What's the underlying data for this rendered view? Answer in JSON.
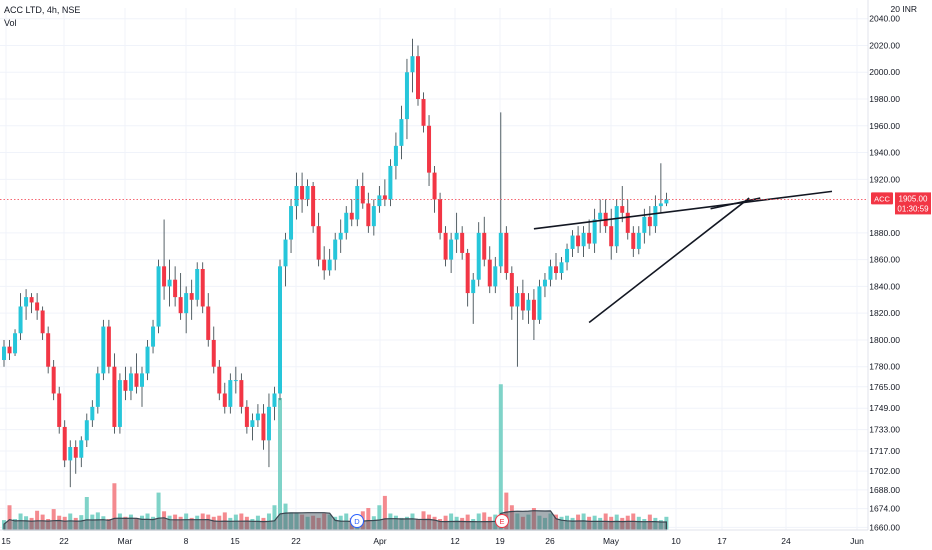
{
  "header": {
    "symbol_line": "ACC LTD, 4h, NSE",
    "volume_label": "Vol"
  },
  "price_scale": {
    "top_label": "20 INR",
    "ticks": [
      2040,
      2020,
      2000,
      1980,
      1960,
      1940,
      1920,
      1880,
      1860,
      1840,
      1820,
      1800,
      1780,
      1765,
      1749,
      1733,
      1717,
      1702,
      1688,
      1674,
      1660
    ],
    "tick_labels": [
      "2040.00",
      "2020.00",
      "2000.00",
      "1980.00",
      "1960.00",
      "1940.00",
      "1920.00",
      "1880.00",
      "1860.00",
      "1840.00",
      "1820.00",
      "1800.00",
      "1780.00",
      "1765.00",
      "1749.00",
      "1733.00",
      "1717.00",
      "1702.00",
      "1688.00",
      "1674.00",
      "1660.00"
    ]
  },
  "last_price": {
    "symbol": "ACC",
    "value": "1905.00",
    "countdown": "01:30:59",
    "price": 1905,
    "color": "#f23645"
  },
  "time_axis": {
    "labels": [
      "15",
      "22",
      "Mar",
      "8",
      "15",
      "22",
      "Apr",
      "12",
      "19",
      "26",
      "May",
      "10",
      "17",
      "24",
      "Jun"
    ]
  },
  "markers": {
    "dividend": "D",
    "earnings": "E"
  },
  "colors": {
    "up": "#26c6da",
    "down": "#f23645",
    "volume_up": "#7fd3c8",
    "volume_down": "#f48a8f",
    "volume_ma_fill": "#5d6b74",
    "grid": "#f0f3fa"
  },
  "chart_data": {
    "type": "candlestick",
    "title": "ACC LTD, 4h, NSE",
    "ylim": [
      1658,
      2048
    ],
    "candles": [
      [
        1785,
        1800,
        1780,
        1795
      ],
      [
        1795,
        1800,
        1785,
        1790
      ],
      [
        1790,
        1808,
        1788,
        1805
      ],
      [
        1805,
        1835,
        1800,
        1825
      ],
      [
        1825,
        1838,
        1815,
        1832
      ],
      [
        1832,
        1835,
        1820,
        1828
      ],
      [
        1828,
        1835,
        1815,
        1822
      ],
      [
        1822,
        1825,
        1800,
        1805
      ],
      [
        1805,
        1810,
        1775,
        1780
      ],
      [
        1780,
        1785,
        1755,
        1760
      ],
      [
        1760,
        1765,
        1730,
        1735
      ],
      [
        1735,
        1740,
        1705,
        1710
      ],
      [
        1710,
        1725,
        1690,
        1720
      ],
      [
        1720,
        1725,
        1700,
        1712
      ],
      [
        1712,
        1728,
        1705,
        1725
      ],
      [
        1725,
        1745,
        1720,
        1740
      ],
      [
        1740,
        1755,
        1735,
        1750
      ],
      [
        1750,
        1780,
        1745,
        1775
      ],
      [
        1775,
        1815,
        1770,
        1810
      ],
      [
        1810,
        1815,
        1775,
        1780
      ],
      [
        1780,
        1790,
        1730,
        1735
      ],
      [
        1735,
        1775,
        1730,
        1770
      ],
      [
        1770,
        1780,
        1755,
        1762
      ],
      [
        1762,
        1780,
        1755,
        1775
      ],
      [
        1775,
        1790,
        1760,
        1765
      ],
      [
        1765,
        1780,
        1750,
        1775
      ],
      [
        1775,
        1800,
        1770,
        1795
      ],
      [
        1795,
        1815,
        1790,
        1810
      ],
      [
        1810,
        1860,
        1805,
        1855
      ],
      [
        1855,
        1890,
        1830,
        1840
      ],
      [
        1840,
        1860,
        1825,
        1845
      ],
      [
        1845,
        1855,
        1825,
        1832
      ],
      [
        1832,
        1850,
        1815,
        1820
      ],
      [
        1820,
        1840,
        1805,
        1835
      ],
      [
        1835,
        1845,
        1815,
        1830
      ],
      [
        1830,
        1858,
        1825,
        1853
      ],
      [
        1853,
        1858,
        1820,
        1825
      ],
      [
        1825,
        1835,
        1795,
        1800
      ],
      [
        1800,
        1810,
        1775,
        1780
      ],
      [
        1780,
        1785,
        1755,
        1760
      ],
      [
        1760,
        1768,
        1745,
        1750
      ],
      [
        1750,
        1775,
        1745,
        1770
      ],
      [
        1770,
        1780,
        1760,
        1770
      ],
      [
        1770,
        1775,
        1745,
        1750
      ],
      [
        1750,
        1755,
        1730,
        1735
      ],
      [
        1735,
        1745,
        1725,
        1740
      ],
      [
        1740,
        1752,
        1735,
        1745
      ],
      [
        1745,
        1752,
        1718,
        1725
      ],
      [
        1725,
        1760,
        1705,
        1750
      ],
      [
        1750,
        1765,
        1740,
        1760
      ],
      [
        1760,
        1860,
        1755,
        1855
      ],
      [
        1855,
        1880,
        1840,
        1875
      ],
      [
        1875,
        1905,
        1865,
        1900
      ],
      [
        1900,
        1925,
        1890,
        1915
      ],
      [
        1915,
        1925,
        1895,
        1905
      ],
      [
        1905,
        1920,
        1900,
        1915
      ],
      [
        1915,
        1918,
        1880,
        1885
      ],
      [
        1885,
        1895,
        1855,
        1860
      ],
      [
        1860,
        1870,
        1845,
        1852
      ],
      [
        1852,
        1868,
        1848,
        1860
      ],
      [
        1860,
        1880,
        1852,
        1875
      ],
      [
        1875,
        1890,
        1865,
        1880
      ],
      [
        1880,
        1900,
        1875,
        1895
      ],
      [
        1895,
        1905,
        1885,
        1890
      ],
      [
        1890,
        1920,
        1885,
        1915
      ],
      [
        1915,
        1925,
        1898,
        1902
      ],
      [
        1902,
        1910,
        1880,
        1885
      ],
      [
        1885,
        1905,
        1878,
        1900
      ],
      [
        1900,
        1915,
        1895,
        1908
      ],
      [
        1908,
        1920,
        1900,
        1905
      ],
      [
        1905,
        1935,
        1900,
        1930
      ],
      [
        1930,
        1955,
        1920,
        1945
      ],
      [
        1945,
        1975,
        1935,
        1965
      ],
      [
        1965,
        2010,
        1950,
        2000
      ],
      [
        2000,
        2025,
        1985,
        2012
      ],
      [
        2012,
        2020,
        1975,
        1980
      ],
      [
        1980,
        1985,
        1955,
        1960
      ],
      [
        1960,
        1968,
        1915,
        1925
      ],
      [
        1925,
        1930,
        1895,
        1905
      ],
      [
        1905,
        1910,
        1875,
        1880
      ],
      [
        1880,
        1885,
        1855,
        1860
      ],
      [
        1860,
        1880,
        1850,
        1875
      ],
      [
        1875,
        1895,
        1865,
        1880
      ],
      [
        1880,
        1885,
        1860,
        1865
      ],
      [
        1865,
        1868,
        1825,
        1835
      ],
      [
        1835,
        1850,
        1812,
        1845
      ],
      [
        1845,
        1888,
        1840,
        1880
      ],
      [
        1880,
        1892,
        1855,
        1860
      ],
      [
        1860,
        1870,
        1835,
        1840
      ],
      [
        1840,
        1862,
        1835,
        1855
      ],
      [
        1855,
        1970,
        1850,
        1880
      ],
      [
        1880,
        1885,
        1845,
        1850
      ],
      [
        1850,
        1855,
        1815,
        1825
      ],
      [
        1825,
        1840,
        1780,
        1835
      ],
      [
        1835,
        1845,
        1815,
        1822
      ],
      [
        1822,
        1835,
        1812,
        1830
      ],
      [
        1830,
        1838,
        1800,
        1815
      ],
      [
        1815,
        1845,
        1812,
        1840
      ],
      [
        1840,
        1850,
        1832,
        1845
      ],
      [
        1845,
        1860,
        1840,
        1855
      ],
      [
        1855,
        1865,
        1845,
        1850
      ],
      [
        1850,
        1862,
        1845,
        1858
      ],
      [
        1858,
        1872,
        1852,
        1868
      ],
      [
        1868,
        1882,
        1862,
        1878
      ],
      [
        1878,
        1885,
        1865,
        1870
      ],
      [
        1870,
        1885,
        1862,
        1880
      ],
      [
        1880,
        1890,
        1868,
        1872
      ],
      [
        1872,
        1898,
        1865,
        1890
      ],
      [
        1890,
        1905,
        1880,
        1895
      ],
      [
        1895,
        1905,
        1880,
        1885
      ],
      [
        1885,
        1898,
        1860,
        1870
      ],
      [
        1870,
        1905,
        1865,
        1900
      ],
      [
        1900,
        1915,
        1888,
        1895
      ],
      [
        1895,
        1905,
        1875,
        1880
      ],
      [
        1880,
        1885,
        1862,
        1868
      ],
      [
        1868,
        1885,
        1864,
        1880
      ],
      [
        1880,
        1898,
        1872,
        1892
      ],
      [
        1892,
        1900,
        1878,
        1885
      ],
      [
        1885,
        1908,
        1880,
        1900
      ],
      [
        1900,
        1932,
        1895,
        1902
      ],
      [
        1902,
        1910,
        1900,
        1905
      ]
    ],
    "volume": [
      18,
      45,
      20,
      30,
      25,
      22,
      35,
      28,
      20,
      38,
      26,
      24,
      30,
      22,
      27,
      60,
      28,
      32,
      25,
      20,
      85,
      30,
      24,
      28,
      22,
      26,
      30,
      24,
      68,
      34,
      26,
      28,
      24,
      30,
      22,
      26,
      30,
      28,
      24,
      26,
      32,
      22,
      28,
      30,
      24,
      20,
      26,
      22,
      30,
      45,
      240,
      48,
      32,
      30,
      28,
      24,
      26,
      22,
      30,
      28,
      24,
      26,
      30,
      22,
      28,
      34,
      40,
      25,
      45,
      62,
      30,
      26,
      22,
      24,
      30,
      20,
      34,
      28,
      24,
      20,
      26,
      30,
      24,
      22,
      28,
      20,
      30,
      32,
      24,
      28,
      265,
      68,
      45,
      30,
      24,
      28,
      40,
      26,
      22,
      30,
      28,
      24,
      26,
      22,
      28,
      30,
      24,
      26,
      22,
      30,
      24,
      28,
      22,
      26,
      30,
      24,
      20,
      28,
      22,
      18,
      24
    ],
    "trendlines": [
      {
        "name": "upper",
        "from": [
          96,
          1883
        ],
        "to": [
          150,
          1911
        ]
      },
      {
        "name": "lower",
        "from": [
          106,
          1813
        ],
        "to": [
          135,
          1906
        ]
      },
      {
        "name": "upper-short",
        "from": [
          128,
          1898
        ],
        "to": [
          137,
          1906
        ]
      }
    ]
  }
}
